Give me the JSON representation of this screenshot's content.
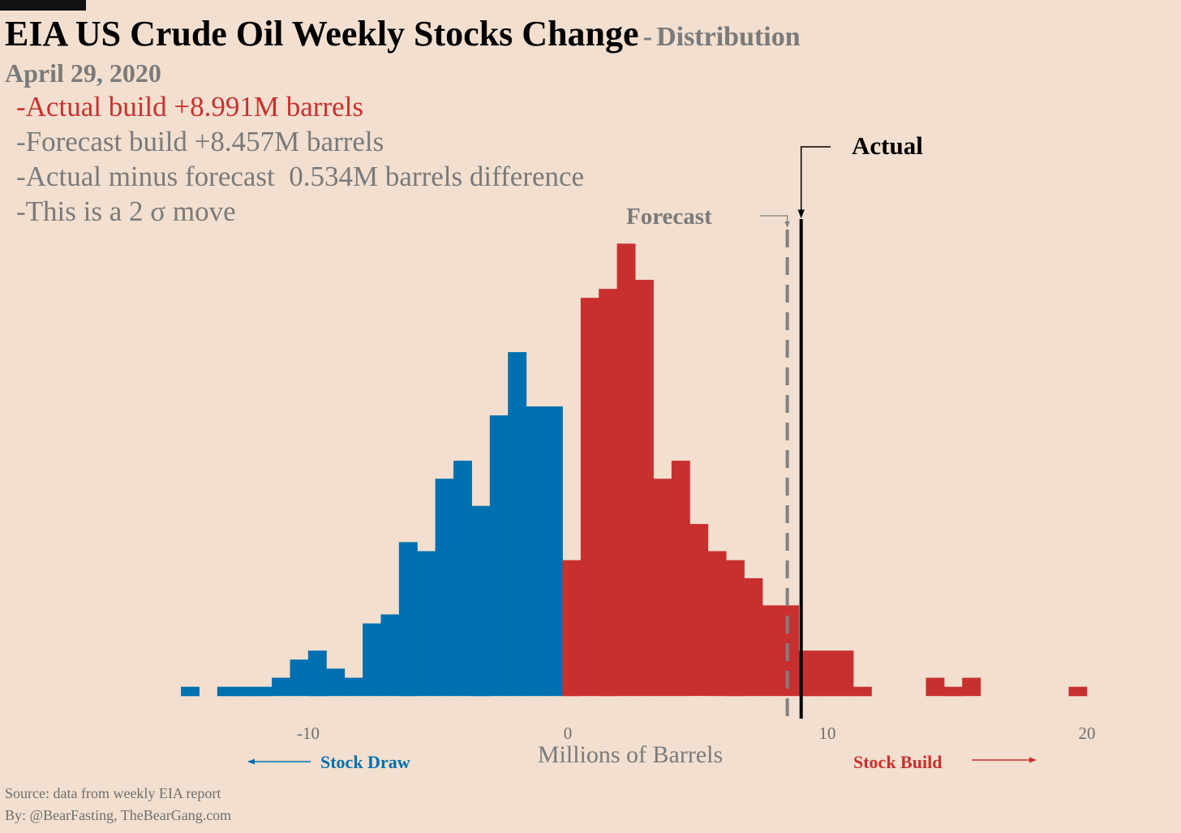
{
  "header": {
    "title": "EIA US Crude Oil Weekly Stocks Change",
    "dash": "-",
    "subtitle": "Distribution",
    "date": "April 29, 2020"
  },
  "summary": {
    "actual": "-Actual build +8.991M barrels",
    "forecast": "-Forecast build +8.457M barrels",
    "difference": "-Actual minus forecast  0.534M barrels difference",
    "sigma": "-This is a 2 σ move"
  },
  "footer": {
    "source": "Source: data from  weekly EIA report",
    "by": "By: @BearFasting, TheBearGang.com"
  },
  "colors": {
    "background": "#f2dfcf",
    "draw": "#0070b0",
    "build": "#c8302f",
    "forecast_line": "#808080",
    "actual_line": "#000000",
    "muted_text": "#7a7a7a"
  },
  "chart_data": {
    "type": "bar",
    "xlabel": "Millions of Barrels",
    "ylabel": "",
    "xlim": [
      -15.3,
      20.4
    ],
    "xticks": [
      -10,
      0,
      10,
      20
    ],
    "xtick_labels": [
      "-10",
      "0",
      "10",
      "20"
    ],
    "bin_width": 0.6944,
    "draw_label": "Stock Draw",
    "build_label": "Stock Build",
    "forecast_label": "Forecast",
    "actual_label": "Actual",
    "forecast_value": 8.457,
    "actual_value": 8.991,
    "grid": false,
    "legend": "none",
    "series": [
      {
        "color": "blue",
        "bins": [
          [
            -14.9,
            1
          ],
          [
            -13.5,
            1
          ],
          [
            -12.8,
            1
          ],
          [
            -12.1,
            1
          ],
          [
            -11.4,
            2
          ],
          [
            -10.7,
            4
          ],
          [
            -10.0,
            5
          ],
          [
            -9.3,
            3
          ],
          [
            -8.6,
            2
          ],
          [
            -7.9,
            8
          ],
          [
            -7.2,
            9
          ],
          [
            -6.5,
            17
          ],
          [
            -5.8,
            16
          ],
          [
            -5.1,
            24
          ],
          [
            -4.4,
            26
          ],
          [
            -3.7,
            21
          ],
          [
            -3.0,
            31
          ],
          [
            -2.3,
            38
          ],
          [
            -1.6,
            32
          ],
          [
            -0.9,
            32
          ]
        ]
      },
      {
        "color": "red",
        "bins": [
          [
            -0.2,
            15
          ],
          [
            0.5,
            44
          ],
          [
            1.2,
            45
          ],
          [
            1.9,
            50
          ],
          [
            2.6,
            46
          ],
          [
            3.3,
            24
          ],
          [
            4.0,
            26
          ],
          [
            4.7,
            19
          ],
          [
            5.4,
            16
          ],
          [
            6.1,
            15
          ],
          [
            6.8,
            13
          ],
          [
            7.5,
            10
          ],
          [
            8.2,
            10
          ],
          [
            8.9,
            5
          ],
          [
            9.6,
            5
          ],
          [
            10.3,
            5
          ],
          [
            11.0,
            1
          ],
          [
            13.8,
            2
          ],
          [
            14.5,
            1
          ],
          [
            15.2,
            2
          ],
          [
            19.3,
            1
          ]
        ]
      }
    ]
  }
}
